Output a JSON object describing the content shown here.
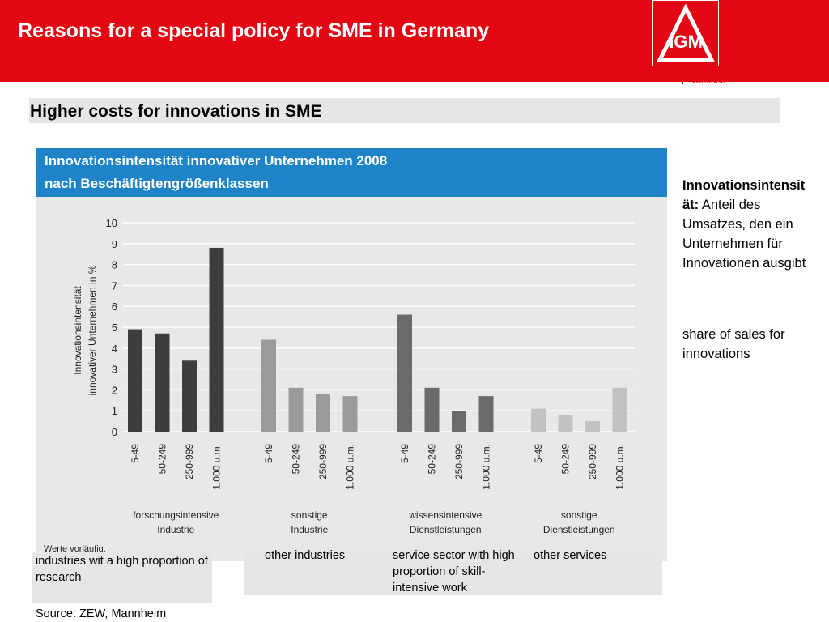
{
  "header": {
    "title": "Reasons for a special policy for SME in Germany",
    "logo_text": "IGM",
    "vorstand": "Vorstand",
    "color": "#e30613"
  },
  "subtitle": "Higher costs for innovations in SME",
  "chart_data": {
    "type": "bar",
    "title_line1": "Innovationsintensität innovativer Unternehmen 2008",
    "title_line2": "nach Beschäftigtengrößenklassen",
    "ylabel_line1": "Innovationsintensität",
    "ylabel_line2": "innovativer Unternehmen in %",
    "ylim": [
      0,
      10
    ],
    "yticks": [
      "0",
      "1",
      "2",
      "3",
      "4",
      "5",
      "6",
      "7",
      "8",
      "9",
      "10"
    ],
    "grid": true,
    "note": "Werte vorläufig.",
    "groups": [
      {
        "name_line1": "forschungsintensive",
        "name_line2": "Industrie",
        "color": "#3d3d3d",
        "categories": [
          "5-49",
          "50-249",
          "250-999",
          "1.000 u.m."
        ],
        "values": [
          4.9,
          4.7,
          3.4,
          8.8
        ]
      },
      {
        "name_line1": "sonstige",
        "name_line2": "Industrie",
        "color": "#9a9a9a",
        "categories": [
          "5-49",
          "50-249",
          "250-999",
          "1.000 u.m."
        ],
        "values": [
          4.4,
          2.1,
          1.8,
          1.7
        ]
      },
      {
        "name_line1": "wissensintensive",
        "name_line2": "Dienstleistungen",
        "color": "#6b6b6b",
        "categories": [
          "5-49",
          "50-249",
          "250-999",
          "1.000 u.m."
        ],
        "values": [
          5.6,
          2.1,
          1.0,
          1.7
        ]
      },
      {
        "name_line1": "sonstige",
        "name_line2": "Dienstleistungen",
        "color": "#c2c2c2",
        "categories": [
          "5-49",
          "50-249",
          "250-999",
          "1.000 u.m."
        ],
        "values": [
          1.1,
          0.8,
          0.5,
          2.1
        ]
      }
    ]
  },
  "side_note": {
    "term": "Innovationsintensität:",
    "definition": "Anteil des Umsatzes, den ein Unternehmen für Innovationen ausgibt",
    "translation": "share of sales for innovations"
  },
  "translations": {
    "group1": "industries wit a high proportion of research",
    "group2": "other industries",
    "group3": "service sector with high proportion of skill-intensive work",
    "group4": "other services"
  },
  "source": "Source: ZEW, Mannheim"
}
